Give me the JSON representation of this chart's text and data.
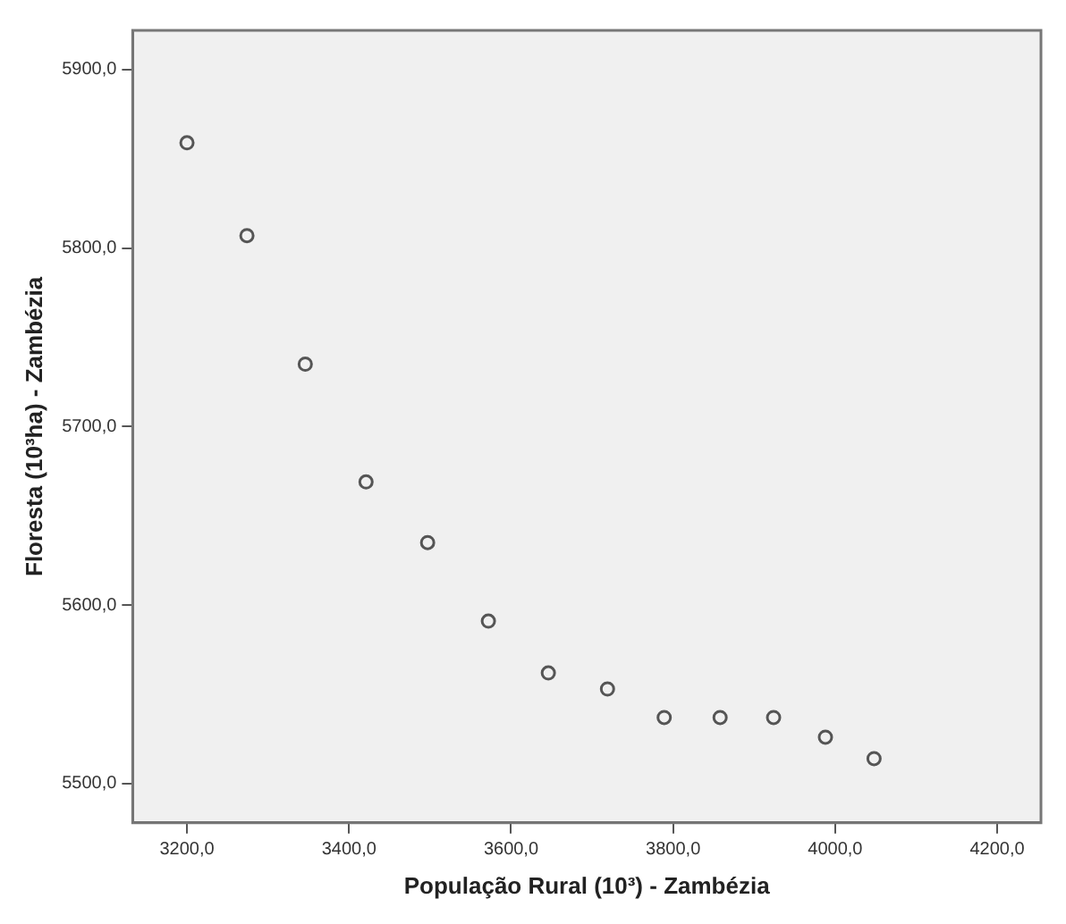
{
  "chart_data": {
    "type": "scatter",
    "xlabel": "População Rural (10³) - Zambézia",
    "ylabel": "Floresta (10³ha) - Zambézia",
    "x": [
      3200,
      3274,
      3346,
      3421,
      3497,
      3572,
      3646,
      3719,
      3789,
      3858,
      3924,
      3988,
      4048
    ],
    "series": [
      {
        "color": "#555555",
        "values": [
          5859,
          5807,
          5735,
          5669,
          5635,
          5591,
          5562,
          5553,
          5537,
          5537,
          5537,
          5526,
          5514
        ]
      }
    ],
    "xlim": [
      3133,
      4254
    ],
    "ylim": [
      5478,
      5922
    ],
    "xticks": [
      {
        "value": 3200,
        "label": "3200,0"
      },
      {
        "value": 3400,
        "label": "3400,0"
      },
      {
        "value": 3600,
        "label": "3600,0"
      },
      {
        "value": 3800,
        "label": "3800,0"
      },
      {
        "value": 4000,
        "label": "4000,0"
      },
      {
        "value": 4200,
        "label": "4200,0"
      }
    ],
    "yticks": [
      {
        "value": 5500,
        "label": "5500,0"
      },
      {
        "value": 5600,
        "label": "5600,0"
      },
      {
        "value": 5700,
        "label": "5700,0"
      },
      {
        "value": 5800,
        "label": "5800,0"
      },
      {
        "value": 5900,
        "label": "5900,0"
      }
    ],
    "grid": false,
    "legend": false,
    "marker": "circle"
  }
}
